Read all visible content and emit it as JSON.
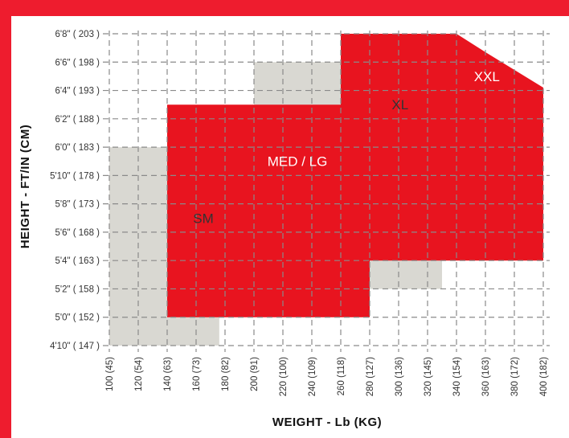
{
  "chart_data": {
    "type": "area",
    "title": "",
    "xlabel": "WEIGHT - Lb (KG)",
    "ylabel": "HEIGHT - FT/IN (CM)",
    "xlim": [
      100,
      400
    ],
    "ylim": [
      58,
      80
    ],
    "x_ticks": [
      {
        "value": 100,
        "label": "100 (45)"
      },
      {
        "value": 120,
        "label": "120 (54)"
      },
      {
        "value": 140,
        "label": "140 (63)"
      },
      {
        "value": 160,
        "label": "160 (73)"
      },
      {
        "value": 180,
        "label": "180 (82)"
      },
      {
        "value": 200,
        "label": "200 (91)"
      },
      {
        "value": 220,
        "label": "220 (100)"
      },
      {
        "value": 240,
        "label": "240 (109)"
      },
      {
        "value": 260,
        "label": "260 (118)"
      },
      {
        "value": 280,
        "label": "280 (127)"
      },
      {
        "value": 300,
        "label": "300 (136)"
      },
      {
        "value": 320,
        "label": "320 (145)"
      },
      {
        "value": 340,
        "label": "340 (154)"
      },
      {
        "value": 360,
        "label": "360 (163)"
      },
      {
        "value": 380,
        "label": "380 (172)"
      },
      {
        "value": 400,
        "label": "400 (182)"
      }
    ],
    "y_ticks": [
      {
        "value": 80,
        "label": "6'8\" ( 203 )"
      },
      {
        "value": 78,
        "label": "6'6\" ( 198 )"
      },
      {
        "value": 76,
        "label": "6'4\" ( 193 )"
      },
      {
        "value": 74,
        "label": "6'2\" ( 188 )"
      },
      {
        "value": 72,
        "label": "6'0\" ( 183 )"
      },
      {
        "value": 70,
        "label": "5'10\" ( 178 )"
      },
      {
        "value": 68,
        "label": "5'8\" ( 173 )"
      },
      {
        "value": 66,
        "label": "5'6\" ( 168 )"
      },
      {
        "value": 64,
        "label": "5'4\" ( 163 )"
      },
      {
        "value": 62,
        "label": "5'2\" ( 158 )"
      },
      {
        "value": 60,
        "label": "5'0\" ( 152 )"
      },
      {
        "value": 58,
        "label": "4'10\" ( 147 )"
      }
    ],
    "grid": true,
    "zones": [
      {
        "label": "SM",
        "color": "#d9d8d2",
        "label_color": "#333333",
        "label_pos": [
          165,
          67
        ],
        "points": [
          [
            100,
            58
          ],
          [
            100,
            72
          ],
          [
            140,
            72
          ],
          [
            176,
            69.3
          ],
          [
            176,
            58
          ]
        ]
      },
      {
        "label": "XL",
        "color": "#d9d8d2",
        "label_color": "#333333",
        "label_pos": [
          301,
          75
        ],
        "points": [
          [
            200,
            62
          ],
          [
            200,
            78
          ],
          [
            310,
            78
          ],
          [
            330,
            74
          ],
          [
            330,
            62
          ]
        ]
      },
      {
        "label": "MED / LG",
        "color": "#e8141f",
        "label_color": "#ffffff",
        "label_pos": [
          230,
          71
        ],
        "points": [
          [
            140,
            60
          ],
          [
            140,
            75
          ],
          [
            275,
            75
          ],
          [
            283,
            73.8
          ],
          [
            283,
            71.5
          ],
          [
            280,
            71.5
          ],
          [
            280,
            60
          ]
        ]
      },
      {
        "label": "XXL",
        "color": "#e8141f",
        "label_color": "#ffffff",
        "label_pos": [
          361,
          77
        ],
        "points": [
          [
            260,
            64
          ],
          [
            260,
            80
          ],
          [
            340,
            80
          ],
          [
            360,
            78.7
          ],
          [
            400,
            76.2
          ],
          [
            400,
            64
          ]
        ]
      }
    ]
  }
}
